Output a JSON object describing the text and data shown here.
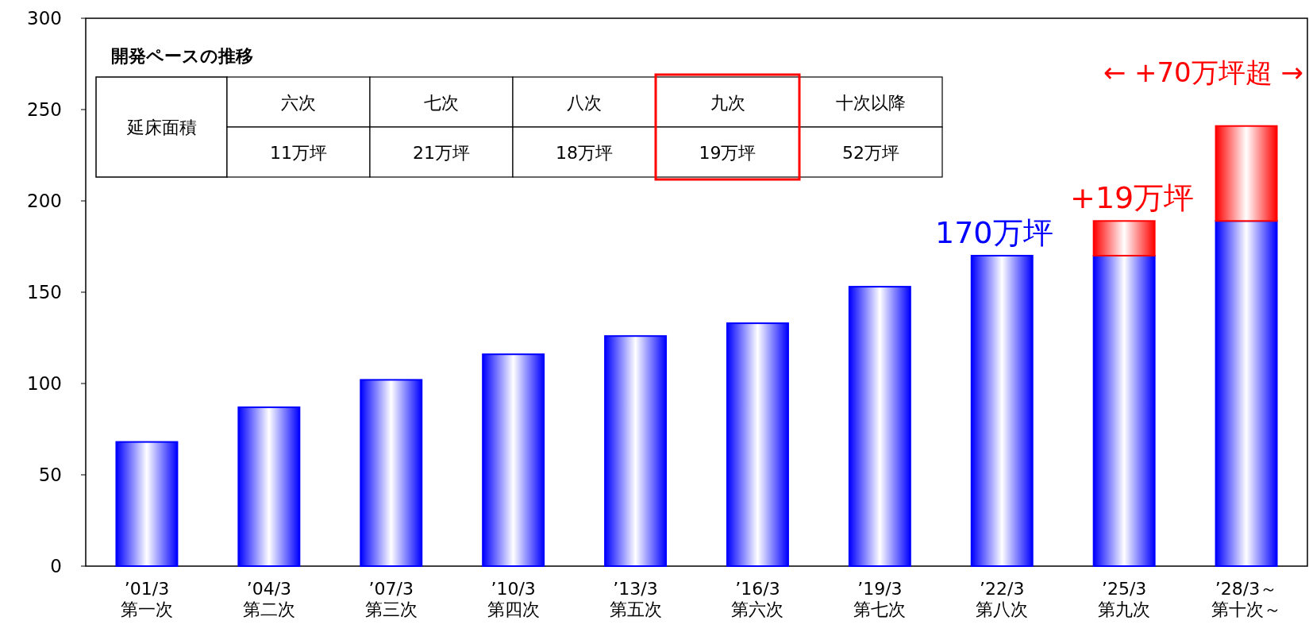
{
  "chart_data": {
    "type": "bar",
    "stacked": true,
    "categories": [
      "’01/3第一次",
      "’04/3第二次",
      "’07/3第三次",
      "’10/3第四次",
      "’13/3第五次",
      "’16/3第六次",
      "’19/3第七次",
      "’22/3第八次",
      "’25/3第九次",
      "’28/3～第十次～"
    ],
    "series": [
      {
        "color": "#0000ff",
        "values": [
          68,
          87,
          102,
          116,
          126,
          133,
          153,
          170,
          170,
          189
        ]
      },
      {
        "color": "#ff0000",
        "values": [
          null,
          null,
          null,
          null,
          null,
          null,
          null,
          null,
          19,
          52
        ]
      }
    ],
    "ylim": [
      0,
      300
    ],
    "yticks": [
      0,
      50,
      100,
      150,
      200,
      250,
      300
    ],
    "grid": false,
    "annotations": [
      {
        "text": "170万坪",
        "x": "’22/3第八次",
        "y": 170
      },
      {
        "text": "+19万坪",
        "x": "’25/3第九次",
        "y": 189
      },
      {
        "text": "← +70万坪超 →",
        "x": "’28/3～第十次～",
        "y": 241
      },
      "開発ペースの推移",
      "延床面積",
      "六次",
      "七次",
      "八次",
      "九次",
      "十次以降",
      "11万坪",
      "21万坪",
      "18万坪",
      "19万坪",
      "52万坪"
    ]
  }
}
